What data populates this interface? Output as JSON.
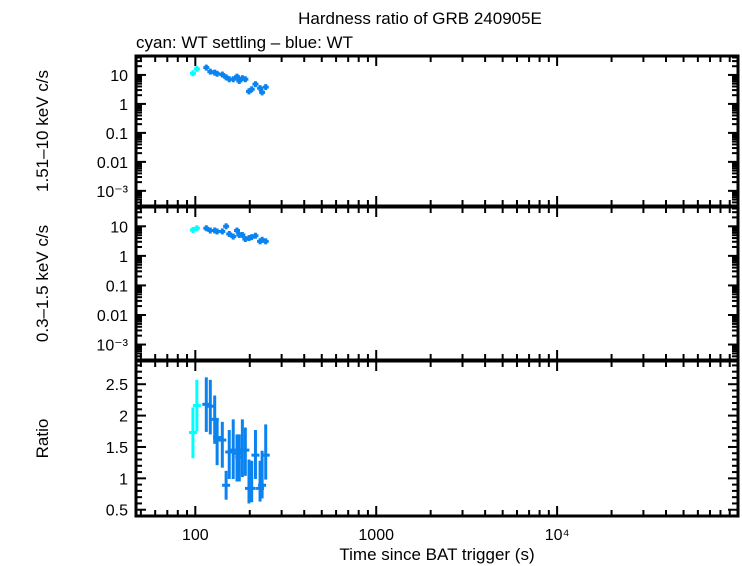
{
  "chart_data": {
    "type": "scatter",
    "title": "Hardness ratio of GRB 240905E",
    "subtitle": "cyan: WT settling – blue: WT",
    "xlabel": "Time since BAT trigger (s)",
    "x_scale": "log",
    "xlim": [
      47,
      100000
    ],
    "x_ticks": [
      {
        "v": 100,
        "label": "100"
      },
      {
        "v": 1000,
        "label": "1000"
      },
      {
        "v": 10000,
        "label": "10⁴"
      }
    ],
    "colors": {
      "wt_settling": "#00ffff",
      "wt": "#0a82f0"
    },
    "panels": [
      {
        "ylabel": "1.51–10 keV c/s",
        "y_scale": "log",
        "ylim": [
          0.0003,
          45
        ],
        "y_ticks": [
          {
            "v": 10,
            "label": "10"
          },
          {
            "v": 1,
            "label": "1"
          },
          {
            "v": 0.1,
            "label": "0.1"
          },
          {
            "v": 0.01,
            "label": "0.01"
          },
          {
            "v": 0.001,
            "label": "10⁻³"
          }
        ],
        "series": [
          {
            "mode": "WT settling",
            "x": [
              97,
              102
            ],
            "y": [
              11.4,
              16.1
            ]
          },
          {
            "mode": "WT",
            "x": [
              115,
              121,
              128,
              132,
              141,
              148,
              154,
              162,
              170,
              175,
              182,
              189,
              198,
              205,
              215,
              228,
              234,
              245
            ],
            "y": [
              17.9,
              13,
              12,
              11,
              10.3,
              8.3,
              7.1,
              7.1,
              8.7,
              6.2,
              7.7,
              7.1,
              2.7,
              3.2,
              4.8,
              3.5,
              2.5,
              3.8
            ]
          }
        ]
      },
      {
        "ylabel": "0.3–1.5 keV c/s",
        "y_scale": "log",
        "ylim": [
          0.0003,
          45
        ],
        "y_ticks": [
          {
            "v": 10,
            "label": "10"
          },
          {
            "v": 1,
            "label": "1"
          },
          {
            "v": 0.1,
            "label": "0.1"
          },
          {
            "v": 0.01,
            "label": "0.01"
          },
          {
            "v": 0.001,
            "label": "10⁻³"
          }
        ],
        "series": [
          {
            "mode": "WT settling",
            "x": [
              97,
              102
            ],
            "y": [
              7.5,
              8.6
            ]
          },
          {
            "mode": "WT",
            "x": [
              115,
              121,
              128,
              132,
              141,
              148,
              154,
              162,
              170,
              175,
              182,
              189,
              198,
              205,
              215,
              228,
              234,
              245
            ],
            "y": [
              8.6,
              7.2,
              7.2,
              6.7,
              6.7,
              10,
              5.5,
              4.5,
              7.2,
              5.1,
              5.1,
              3.7,
              4.0,
              4.3,
              4.8,
              3.1,
              3.5,
              3.1
            ]
          }
        ]
      },
      {
        "ylabel": "Ratio",
        "y_scale": "linear",
        "ylim": [
          0.4,
          2.87
        ],
        "y_ticks": [
          {
            "v": 2.5,
            "label": "2.5"
          },
          {
            "v": 2,
            "label": "2"
          },
          {
            "v": 1.5,
            "label": "1.5"
          },
          {
            "v": 1,
            "label": "1"
          },
          {
            "v": 0.5,
            "label": "0.5"
          }
        ],
        "series": [
          {
            "mode": "WT settling",
            "x": [
              97,
              102
            ],
            "y": [
              1.73,
              2.16
            ],
            "ylo": [
              1.32,
              1.75
            ],
            "yhi": [
              2.13,
              2.57
            ]
          },
          {
            "mode": "WT",
            "x": [
              115,
              121,
              128,
              132,
              141,
              148,
              154,
              162,
              170,
              175,
              182,
              189,
              198,
              205,
              215,
              228,
              234,
              245
            ],
            "y": [
              2.18,
              2.15,
              1.94,
              1.65,
              1.61,
              0.89,
              1.42,
              1.45,
              1.4,
              1.34,
              1.45,
              1.45,
              0.84,
              0.84,
              1.37,
              0.84,
              0.89,
              1.37
            ],
            "ylo": [
              1.74,
              1.7,
              1.55,
              1.21,
              1.17,
              0.66,
              0.99,
              0.99,
              0.95,
              0.95,
              1.02,
              1.04,
              0.6,
              0.62,
              0.99,
              0.63,
              0.68,
              0.98
            ],
            "yhi": [
              2.61,
              2.57,
              2.32,
              1.95,
              1.9,
              1.12,
              1.77,
              1.94,
              1.7,
              1.7,
              1.94,
              1.81,
              1.3,
              1.28,
              1.77,
              1.28,
              1.44,
              1.86
            ]
          }
        ]
      }
    ]
  }
}
